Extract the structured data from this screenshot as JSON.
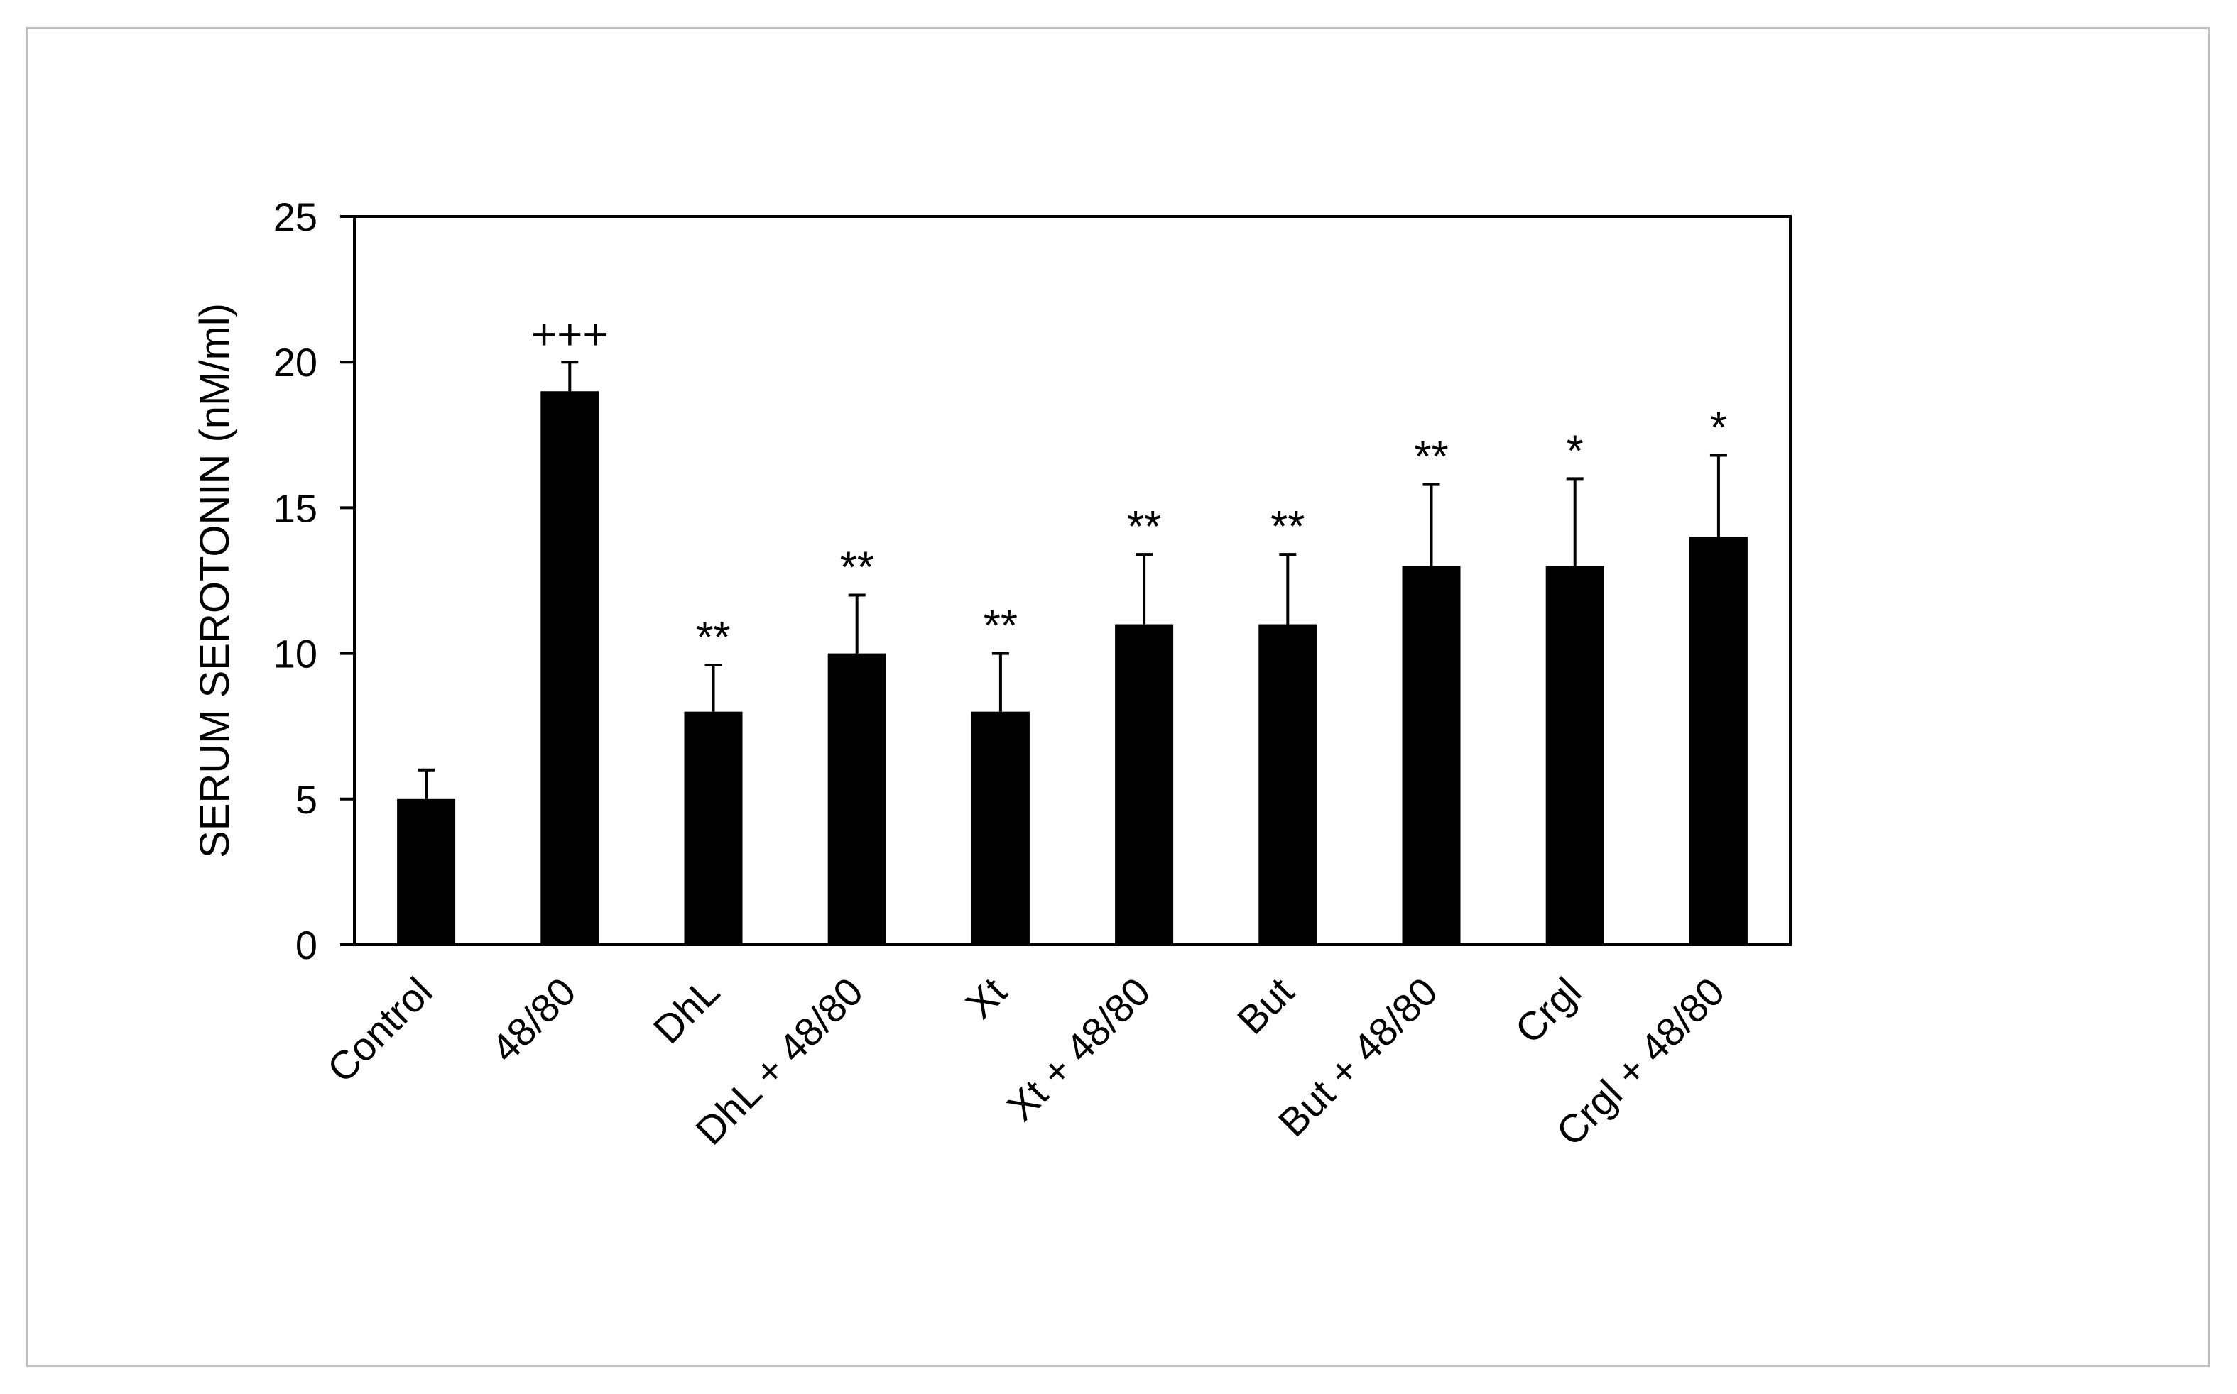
{
  "chart_data": {
    "type": "bar",
    "title": "",
    "xlabel": "",
    "ylabel": "SERUM SEROTONIN (nM/ml)",
    "ylim": [
      0,
      25
    ],
    "yticks": [
      0,
      5,
      10,
      15,
      20,
      25
    ],
    "grid": false,
    "legend": "none",
    "bar_color": "#000000",
    "categories": [
      "Control",
      "48/80",
      "DhL",
      "DhL + 48/80",
      "Xt",
      "Xt + 48/80",
      "But",
      "But + 48/80",
      "Crgl",
      "Crgl + 48/80"
    ],
    "values": [
      5,
      19,
      8,
      10,
      8,
      11,
      11,
      13,
      13,
      14
    ],
    "error_upper": [
      1.0,
      1.0,
      1.6,
      2.0,
      2.0,
      2.4,
      2.4,
      2.8,
      3.0,
      2.8
    ],
    "annotations": [
      "",
      "+++",
      "**",
      "**",
      "**",
      "**",
      "**",
      "**",
      "*",
      "*"
    ]
  }
}
